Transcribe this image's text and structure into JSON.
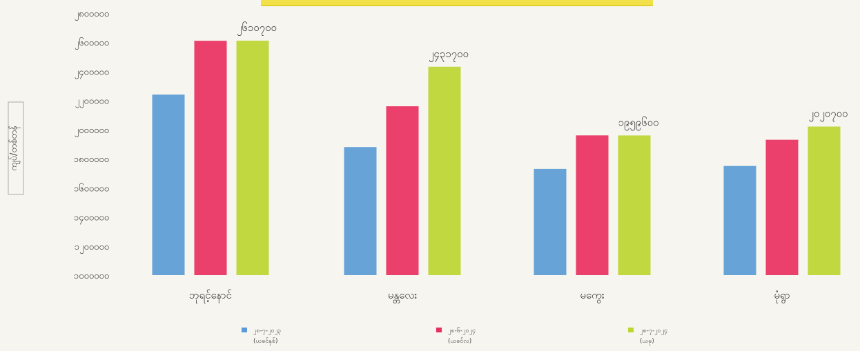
{
  "chart_data": {
    "type": "bar",
    "ylabel": "ကျပ်/တစ်တန်",
    "ylim": [
      1000000,
      2600000
    ],
    "yticks": [
      "၁၀၀၀၀၀၀",
      "၁၂၀၀၀၀၀",
      "၁၄၀၀၀၀၀",
      "၁၆၀၀၀၀၀",
      "၁၈၀၀၀၀၀",
      "၂၀၀၀၀၀၀",
      "၂၂၀၀၀၀၀",
      "၂၄၀၀၀၀၀",
      "၂၆၀၀၀၀၀",
      "၂၈၀၀၀၀၀"
    ],
    "categories": [
      "ဘုရင့်နောင်",
      "မန္တလေး",
      "မကွေး",
      "မုံရွာ"
    ],
    "series": [
      {
        "name": "၂၈-၇-၂၀၂၃",
        "note": "(ယခင်နှစ်)",
        "color": "#5b9bd5",
        "values": [
          2240000,
          1880000,
          1730000,
          1750000
        ]
      },
      {
        "name": "၂၈-၆-၂၀၂၄",
        "note": "(ယခင်လ)",
        "color": "#e8305f",
        "values": [
          2610000,
          2160000,
          1960000,
          1930000
        ]
      },
      {
        "name": "၂၈-၇-၂၀၂၄",
        "note": "(ယခု)",
        "color": "#bcd531",
        "values": [
          2610700,
          2431700,
          1959600,
          2020700
        ]
      }
    ],
    "data_labels": [
      "၂၆၁၀၇၀၀",
      "၂၄၃၁၇၀၀",
      "၁၉၅၉၆၀၀",
      "၂၀၂၀၇၀၀"
    ],
    "legend_position": "bottom",
    "grid": false
  }
}
